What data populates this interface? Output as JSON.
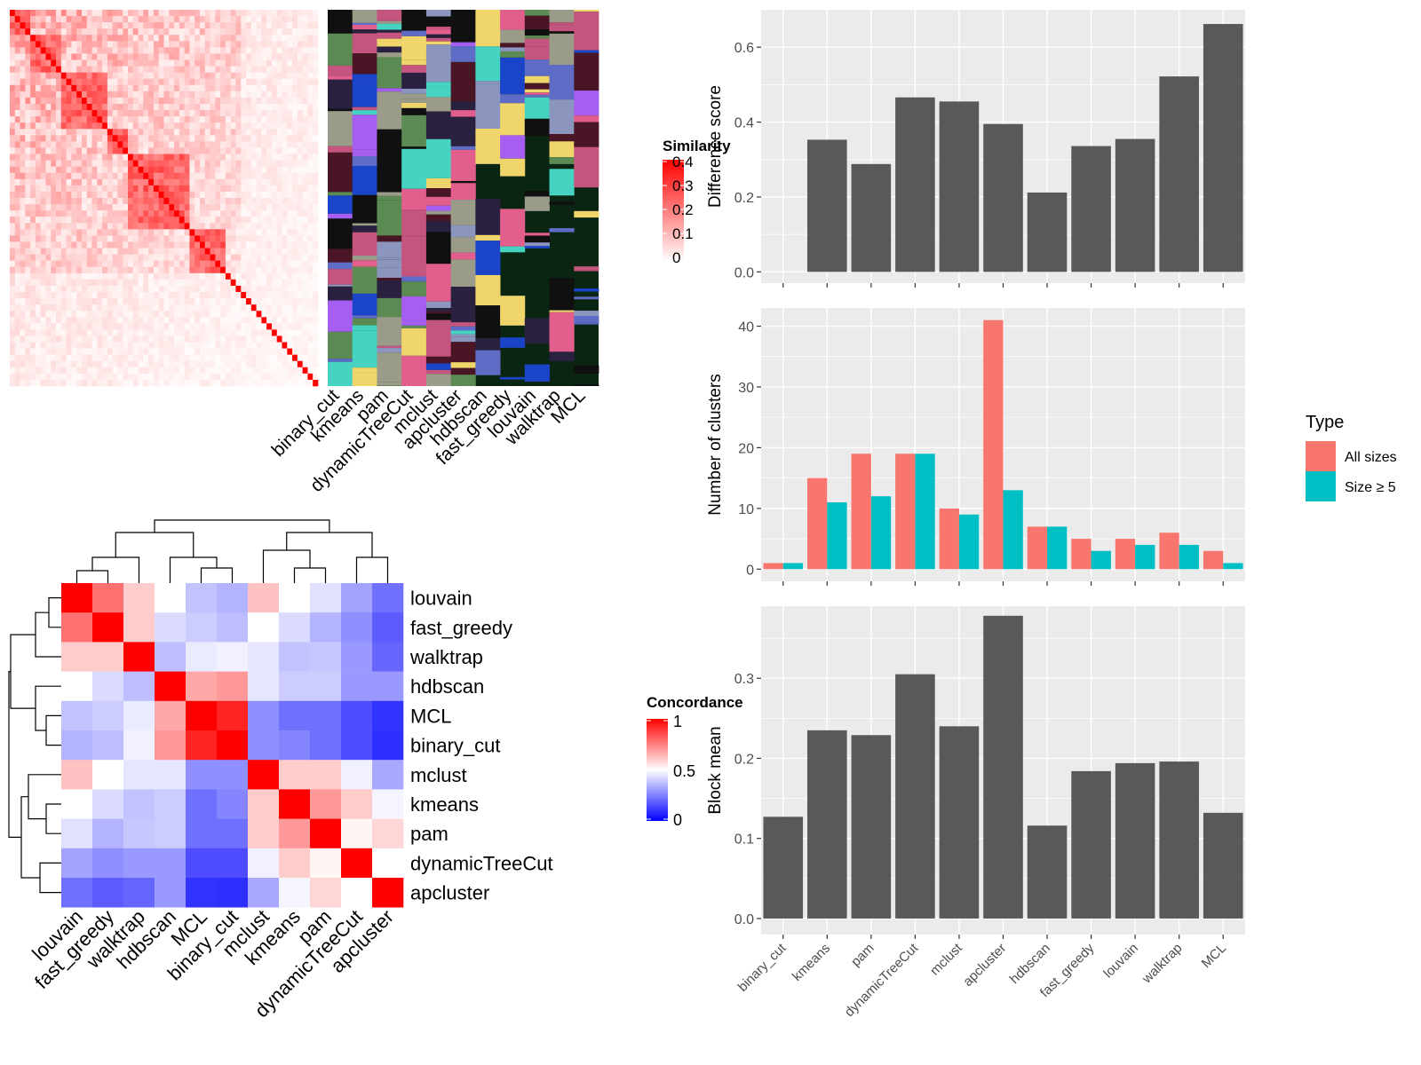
{
  "methods": [
    "binary_cut",
    "kmeans",
    "pam",
    "dynamicTreeCut",
    "mclust",
    "apcluster",
    "hdbscan",
    "fast_greedy",
    "louvain",
    "walktrap",
    "MCL"
  ],
  "similarity_legend": {
    "title": "Similarity",
    "ticks": [
      "0.4",
      "0.3",
      "0.2",
      "0.1",
      "0"
    ]
  },
  "concordance_legend": {
    "title": "Concordance",
    "ticks": [
      "1",
      "0.5",
      "0"
    ]
  },
  "type_legend": {
    "title": "Type",
    "items": [
      {
        "label": "All sizes",
        "color": "#F8766D"
      },
      {
        "label": "Size ≥ 5",
        "color": "#00BFC4"
      }
    ]
  },
  "colors": {
    "panel_bg": "#EBEBEB",
    "bar": "#595959",
    "all_sizes": "#F8766D",
    "size5": "#00BFC4",
    "class_bg": "#0A2512"
  },
  "chart_data": [
    {
      "id": "difference_score",
      "type": "bar",
      "categories": [
        "binary_cut",
        "kmeans",
        "pam",
        "dynamicTreeCut",
        "mclust",
        "apcluster",
        "hdbscan",
        "fast_greedy",
        "louvain",
        "walktrap",
        "MCL"
      ],
      "values": [
        0,
        0.353,
        0.288,
        0.466,
        0.455,
        0.395,
        0.212,
        0.336,
        0.355,
        0.522,
        0.662
      ],
      "ylabel": "Difference score",
      "ylim": [
        -0.03,
        0.7
      ],
      "yticks": [
        "0.0",
        "0.2",
        "0.4",
        "0.6"
      ],
      "grid": true
    },
    {
      "id": "number_of_clusters",
      "type": "bar",
      "categories": [
        "binary_cut",
        "kmeans",
        "pam",
        "dynamicTreeCut",
        "mclust",
        "apcluster",
        "hdbscan",
        "fast_greedy",
        "louvain",
        "walktrap",
        "MCL"
      ],
      "series": [
        {
          "name": "All sizes",
          "values": [
            1,
            15,
            19,
            19,
            10,
            41,
            7,
            5,
            5,
            6,
            3
          ]
        },
        {
          "name": "Size ≥ 5",
          "values": [
            1,
            11,
            12,
            19,
            9,
            13,
            7,
            3,
            4,
            4,
            1
          ]
        }
      ],
      "ylabel": "Number of clusters",
      "ylim": [
        -2,
        43
      ],
      "yticks": [
        "0",
        "10",
        "20",
        "30",
        "40"
      ],
      "legend": "right",
      "grid": true
    },
    {
      "id": "block_mean",
      "type": "bar",
      "categories": [
        "binary_cut",
        "kmeans",
        "pam",
        "dynamicTreeCut",
        "mclust",
        "apcluster",
        "hdbscan",
        "fast_greedy",
        "louvain",
        "walktrap",
        "MCL"
      ],
      "values": [
        0.127,
        0.235,
        0.229,
        0.305,
        0.24,
        0.378,
        0.116,
        0.184,
        0.194,
        0.196,
        0.132
      ],
      "ylabel": "Block mean",
      "ylim": [
        -0.02,
        0.39
      ],
      "yticks": [
        "0.0",
        "0.1",
        "0.2",
        "0.3"
      ],
      "grid": true
    },
    {
      "id": "concordance_heatmap",
      "type": "heatmap",
      "rows": [
        "louvain",
        "fast_greedy",
        "walktrap",
        "hdbscan",
        "MCL",
        "binary_cut",
        "mclust",
        "kmeans",
        "pam",
        "dynamicTreeCut",
        "apcluster"
      ],
      "cols": [
        "louvain",
        "fast_greedy",
        "walktrap",
        "hdbscan",
        "MCL",
        "binary_cut",
        "mclust",
        "kmeans",
        "pam",
        "dynamicTreeCut",
        "apcluster"
      ],
      "values": [
        [
          1.0,
          0.78,
          0.6,
          0.5,
          0.38,
          0.35,
          0.62,
          0.5,
          0.44,
          0.32,
          0.22
        ],
        [
          0.78,
          1.0,
          0.6,
          0.43,
          0.4,
          0.37,
          0.5,
          0.43,
          0.35,
          0.28,
          0.18
        ],
        [
          0.6,
          0.6,
          1.0,
          0.37,
          0.46,
          0.47,
          0.45,
          0.38,
          0.39,
          0.3,
          0.2
        ],
        [
          0.5,
          0.43,
          0.37,
          1.0,
          0.67,
          0.7,
          0.45,
          0.4,
          0.4,
          0.3,
          0.3
        ],
        [
          0.38,
          0.4,
          0.46,
          0.67,
          1.0,
          0.93,
          0.28,
          0.22,
          0.22,
          0.15,
          0.1
        ],
        [
          0.35,
          0.37,
          0.47,
          0.7,
          0.93,
          1.0,
          0.28,
          0.26,
          0.22,
          0.15,
          0.09
        ],
        [
          0.62,
          0.5,
          0.45,
          0.45,
          0.28,
          0.28,
          1.0,
          0.6,
          0.6,
          0.47,
          0.33
        ],
        [
          0.5,
          0.43,
          0.38,
          0.4,
          0.22,
          0.26,
          0.6,
          1.0,
          0.7,
          0.6,
          0.48
        ],
        [
          0.44,
          0.35,
          0.39,
          0.4,
          0.22,
          0.22,
          0.6,
          0.7,
          1.0,
          0.52,
          0.58
        ],
        [
          0.32,
          0.28,
          0.3,
          0.3,
          0.15,
          0.15,
          0.47,
          0.6,
          0.52,
          1.0,
          0.5
        ],
        [
          0.22,
          0.18,
          0.2,
          0.3,
          0.1,
          0.09,
          0.33,
          0.48,
          0.58,
          0.5,
          1.0
        ]
      ],
      "range": [
        0,
        1
      ]
    },
    {
      "id": "similarity_heatmap",
      "type": "heatmap",
      "range": [
        0,
        0.4
      ],
      "blocks": [
        [
          0,
          0.07
        ],
        [
          0.07,
          0.16
        ],
        [
          0.16,
          0.32
        ],
        [
          0.32,
          0.38
        ],
        [
          0.38,
          0.58
        ],
        [
          0.58,
          0.7
        ],
        [
          0.7,
          0.84
        ],
        [
          0.84,
          1
        ]
      ]
    }
  ]
}
